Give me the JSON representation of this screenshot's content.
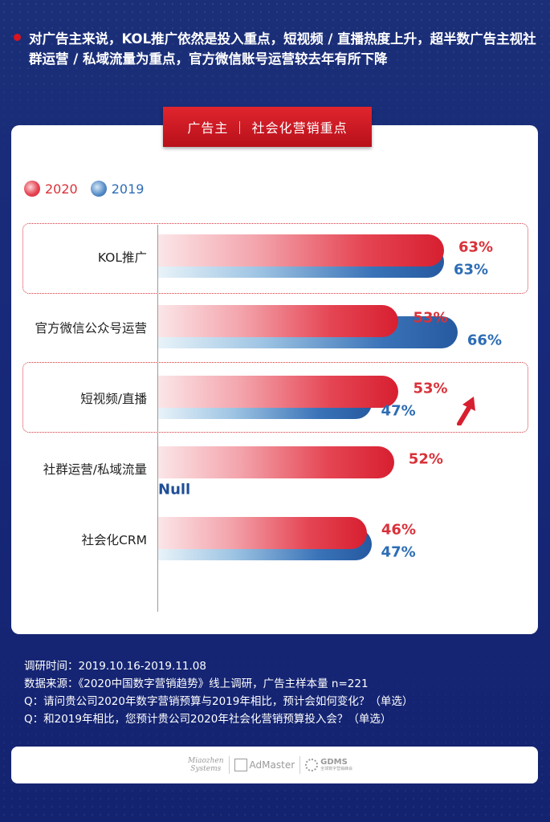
{
  "headline": "对广告主来说，KOL推广依然是投入重点，短视频 / 直播热度上升，超半数广告主视社群运营 / 私域流量为重点，官方微信账号运营较去年有所下降",
  "chart_title": "广告主 ｜ 社会化营销重点",
  "colors": {
    "background": "#1b2f78",
    "accent_red": "#d9323a",
    "accent_blue": "#2d6db5"
  },
  "chart_data": {
    "type": "bar",
    "orientation": "horizontal",
    "value_unit": "%",
    "categories": [
      "KOL推广",
      "官方微信公众号运营",
      "短视频/直播",
      "社群运营/私域流量",
      "社会化CRM"
    ],
    "series": [
      {
        "name": "2020",
        "values": [
          63,
          53,
          53,
          52,
          46
        ],
        "labels": [
          "63%",
          "53%",
          "53%",
          "52%",
          "46%"
        ],
        "color": "#d9323a"
      },
      {
        "name": "2019",
        "values": [
          63,
          66,
          47,
          null,
          47
        ],
        "labels": [
          "63%",
          "66%",
          "47%",
          "Null",
          "47%"
        ],
        "color": "#2d6db5"
      }
    ],
    "highlighted_categories": [
      "KOL推广",
      "短视频/直播"
    ],
    "trend_marker": {
      "category": "短视频/直播",
      "direction": "up"
    },
    "legend": {
      "position": "top-left",
      "entries": [
        "2020",
        "2019"
      ]
    },
    "grid": false
  },
  "notes": [
    "调研时间：2019.10.16-2019.11.08",
    "数据来源：《2020中国数字营销趋势》线上调研，广告主样本量 n=221",
    "Q：请问贵公司2020年数字营销预算与2019年相比，预计会如何变化？（单选）",
    "Q：和2019年相比，您预计贵公司2020年社会化营销预算投入会？（单选）"
  ],
  "logos": {
    "miaozhen_line1": "Miaozhen",
    "miaozhen_line2": "Systems",
    "admaster": "AdMaster",
    "gdms": "GDMS",
    "gdms_sub": "全球数字营销峰会"
  }
}
